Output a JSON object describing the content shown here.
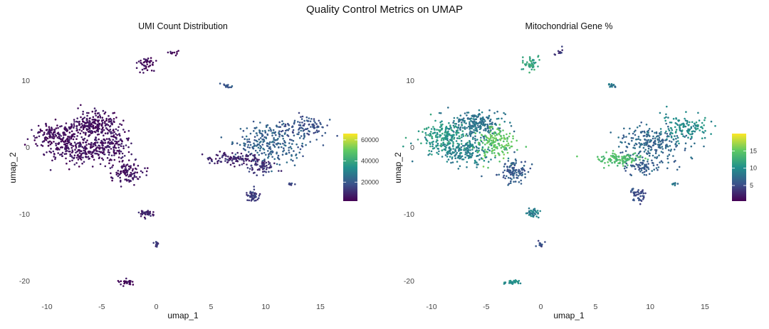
{
  "figure": {
    "title": "Quality Control Metrics on UMAP"
  },
  "chart_data": [
    {
      "type": "scatter",
      "title": "UMI Count Distribution",
      "xlabel": "umap_1",
      "ylabel": "umap_2",
      "xlim": [
        -11,
        16
      ],
      "ylim": [
        -22,
        15
      ],
      "x_ticks": [
        -10,
        -5,
        0,
        5,
        10,
        15
      ],
      "y_ticks": [
        -20,
        -10,
        0,
        10
      ],
      "grid": false,
      "color_scale": {
        "name": "viridis",
        "range": [
          2000,
          66000
        ],
        "ticks": [
          20000,
          40000,
          60000
        ],
        "colors": [
          "#440154",
          "#3b528b",
          "#21918c",
          "#5ec962",
          "#fde725"
        ],
        "legend_position": "right"
      },
      "clusters": [
        {
          "x": -5.8,
          "y": 3.4,
          "sx": 1.2,
          "sy": 0.9,
          "n": 240,
          "color_value": 5000
        },
        {
          "x": -9.0,
          "y": 1.5,
          "sx": 1.1,
          "sy": 1.0,
          "n": 180,
          "color_value": 4500
        },
        {
          "x": -7.0,
          "y": -0.6,
          "sx": 1.4,
          "sy": 1.0,
          "n": 200,
          "color_value": 5000
        },
        {
          "x": -4.3,
          "y": 0.5,
          "sx": 0.9,
          "sy": 1.2,
          "n": 150,
          "color_value": 5500
        },
        {
          "x": -2.6,
          "y": -3.6,
          "sx": 0.7,
          "sy": 0.9,
          "n": 110,
          "color_value": 6000
        },
        {
          "x": 10.2,
          "y": 0.5,
          "sx": 1.7,
          "sy": 1.4,
          "n": 240,
          "color_value": 22000
        },
        {
          "x": 13.2,
          "y": 2.9,
          "sx": 1.1,
          "sy": 0.9,
          "n": 120,
          "color_value": 18000
        },
        {
          "x": 7.3,
          "y": -1.8,
          "sx": 1.2,
          "sy": 0.45,
          "n": 110,
          "color_value": 9000
        },
        {
          "x": 9.5,
          "y": -2.9,
          "sx": 0.7,
          "sy": 0.5,
          "n": 60,
          "color_value": 12000
        },
        {
          "x": -0.9,
          "y": 12.5,
          "sx": 0.35,
          "sy": 0.6,
          "n": 45,
          "color_value": 4000
        },
        {
          "x": 1.6,
          "y": 14.2,
          "sx": 0.25,
          "sy": 0.25,
          "n": 10,
          "color_value": 5000
        },
        {
          "x": 6.5,
          "y": 9.2,
          "sx": 0.2,
          "sy": 0.15,
          "n": 15,
          "color_value": 20000
        },
        {
          "x": 8.9,
          "y": -7.2,
          "sx": 0.35,
          "sy": 0.5,
          "n": 45,
          "color_value": 14000
        },
        {
          "x": 12.3,
          "y": -5.6,
          "sx": 0.15,
          "sy": 0.15,
          "n": 8,
          "color_value": 15000
        },
        {
          "x": -0.8,
          "y": -9.9,
          "sx": 0.35,
          "sy": 0.3,
          "n": 40,
          "color_value": 8000
        },
        {
          "x": 0.0,
          "y": -14.6,
          "sx": 0.15,
          "sy": 0.2,
          "n": 15,
          "color_value": 12000
        },
        {
          "x": -2.7,
          "y": -20.2,
          "sx": 0.3,
          "sy": 0.2,
          "n": 30,
          "color_value": 3000
        }
      ]
    },
    {
      "type": "scatter",
      "title": "Mitochondrial Gene %",
      "xlabel": "umap_1",
      "ylabel": "umap_2",
      "xlim": [
        -11,
        16
      ],
      "ylim": [
        -22,
        15
      ],
      "x_ticks": [
        -10,
        -5,
        0,
        5,
        10,
        15
      ],
      "y_ticks": [
        -20,
        -10,
        0,
        10
      ],
      "grid": false,
      "color_scale": {
        "name": "viridis",
        "range": [
          0.5,
          20
        ],
        "ticks": [
          5,
          10,
          15
        ],
        "colors": [
          "#440154",
          "#3b528b",
          "#21918c",
          "#5ec962",
          "#fde725"
        ],
        "legend_position": "right"
      },
      "clusters": [
        {
          "x": -5.8,
          "y": 3.4,
          "sx": 1.2,
          "sy": 0.9,
          "n": 240,
          "color_value": 8
        },
        {
          "x": -9.0,
          "y": 1.5,
          "sx": 1.1,
          "sy": 1.0,
          "n": 180,
          "color_value": 11
        },
        {
          "x": -7.0,
          "y": -0.6,
          "sx": 1.4,
          "sy": 1.0,
          "n": 200,
          "color_value": 9
        },
        {
          "x": -4.3,
          "y": 0.5,
          "sx": 0.9,
          "sy": 1.2,
          "n": 150,
          "color_value": 15
        },
        {
          "x": -2.6,
          "y": -3.6,
          "sx": 0.7,
          "sy": 0.9,
          "n": 110,
          "color_value": 6
        },
        {
          "x": 10.2,
          "y": 0.5,
          "sx": 1.7,
          "sy": 1.4,
          "n": 240,
          "color_value": 7
        },
        {
          "x": 13.2,
          "y": 2.9,
          "sx": 1.1,
          "sy": 0.9,
          "n": 120,
          "color_value": 10
        },
        {
          "x": 7.3,
          "y": -1.8,
          "sx": 1.2,
          "sy": 0.45,
          "n": 110,
          "color_value": 14
        },
        {
          "x": 9.5,
          "y": -2.9,
          "sx": 0.7,
          "sy": 0.5,
          "n": 60,
          "color_value": 6
        },
        {
          "x": -0.9,
          "y": 12.5,
          "sx": 0.35,
          "sy": 0.6,
          "n": 45,
          "color_value": 12
        },
        {
          "x": 1.6,
          "y": 14.2,
          "sx": 0.25,
          "sy": 0.25,
          "n": 10,
          "color_value": 4
        },
        {
          "x": 6.5,
          "y": 9.2,
          "sx": 0.2,
          "sy": 0.15,
          "n": 15,
          "color_value": 8
        },
        {
          "x": 8.9,
          "y": -7.2,
          "sx": 0.35,
          "sy": 0.5,
          "n": 45,
          "color_value": 5
        },
        {
          "x": 12.3,
          "y": -5.6,
          "sx": 0.15,
          "sy": 0.15,
          "n": 8,
          "color_value": 8
        },
        {
          "x": -0.8,
          "y": -9.9,
          "sx": 0.35,
          "sy": 0.3,
          "n": 40,
          "color_value": 9
        },
        {
          "x": 0.0,
          "y": -14.6,
          "sx": 0.15,
          "sy": 0.2,
          "n": 15,
          "color_value": 5
        },
        {
          "x": -2.7,
          "y": -20.2,
          "sx": 0.3,
          "sy": 0.2,
          "n": 30,
          "color_value": 10
        }
      ]
    }
  ]
}
